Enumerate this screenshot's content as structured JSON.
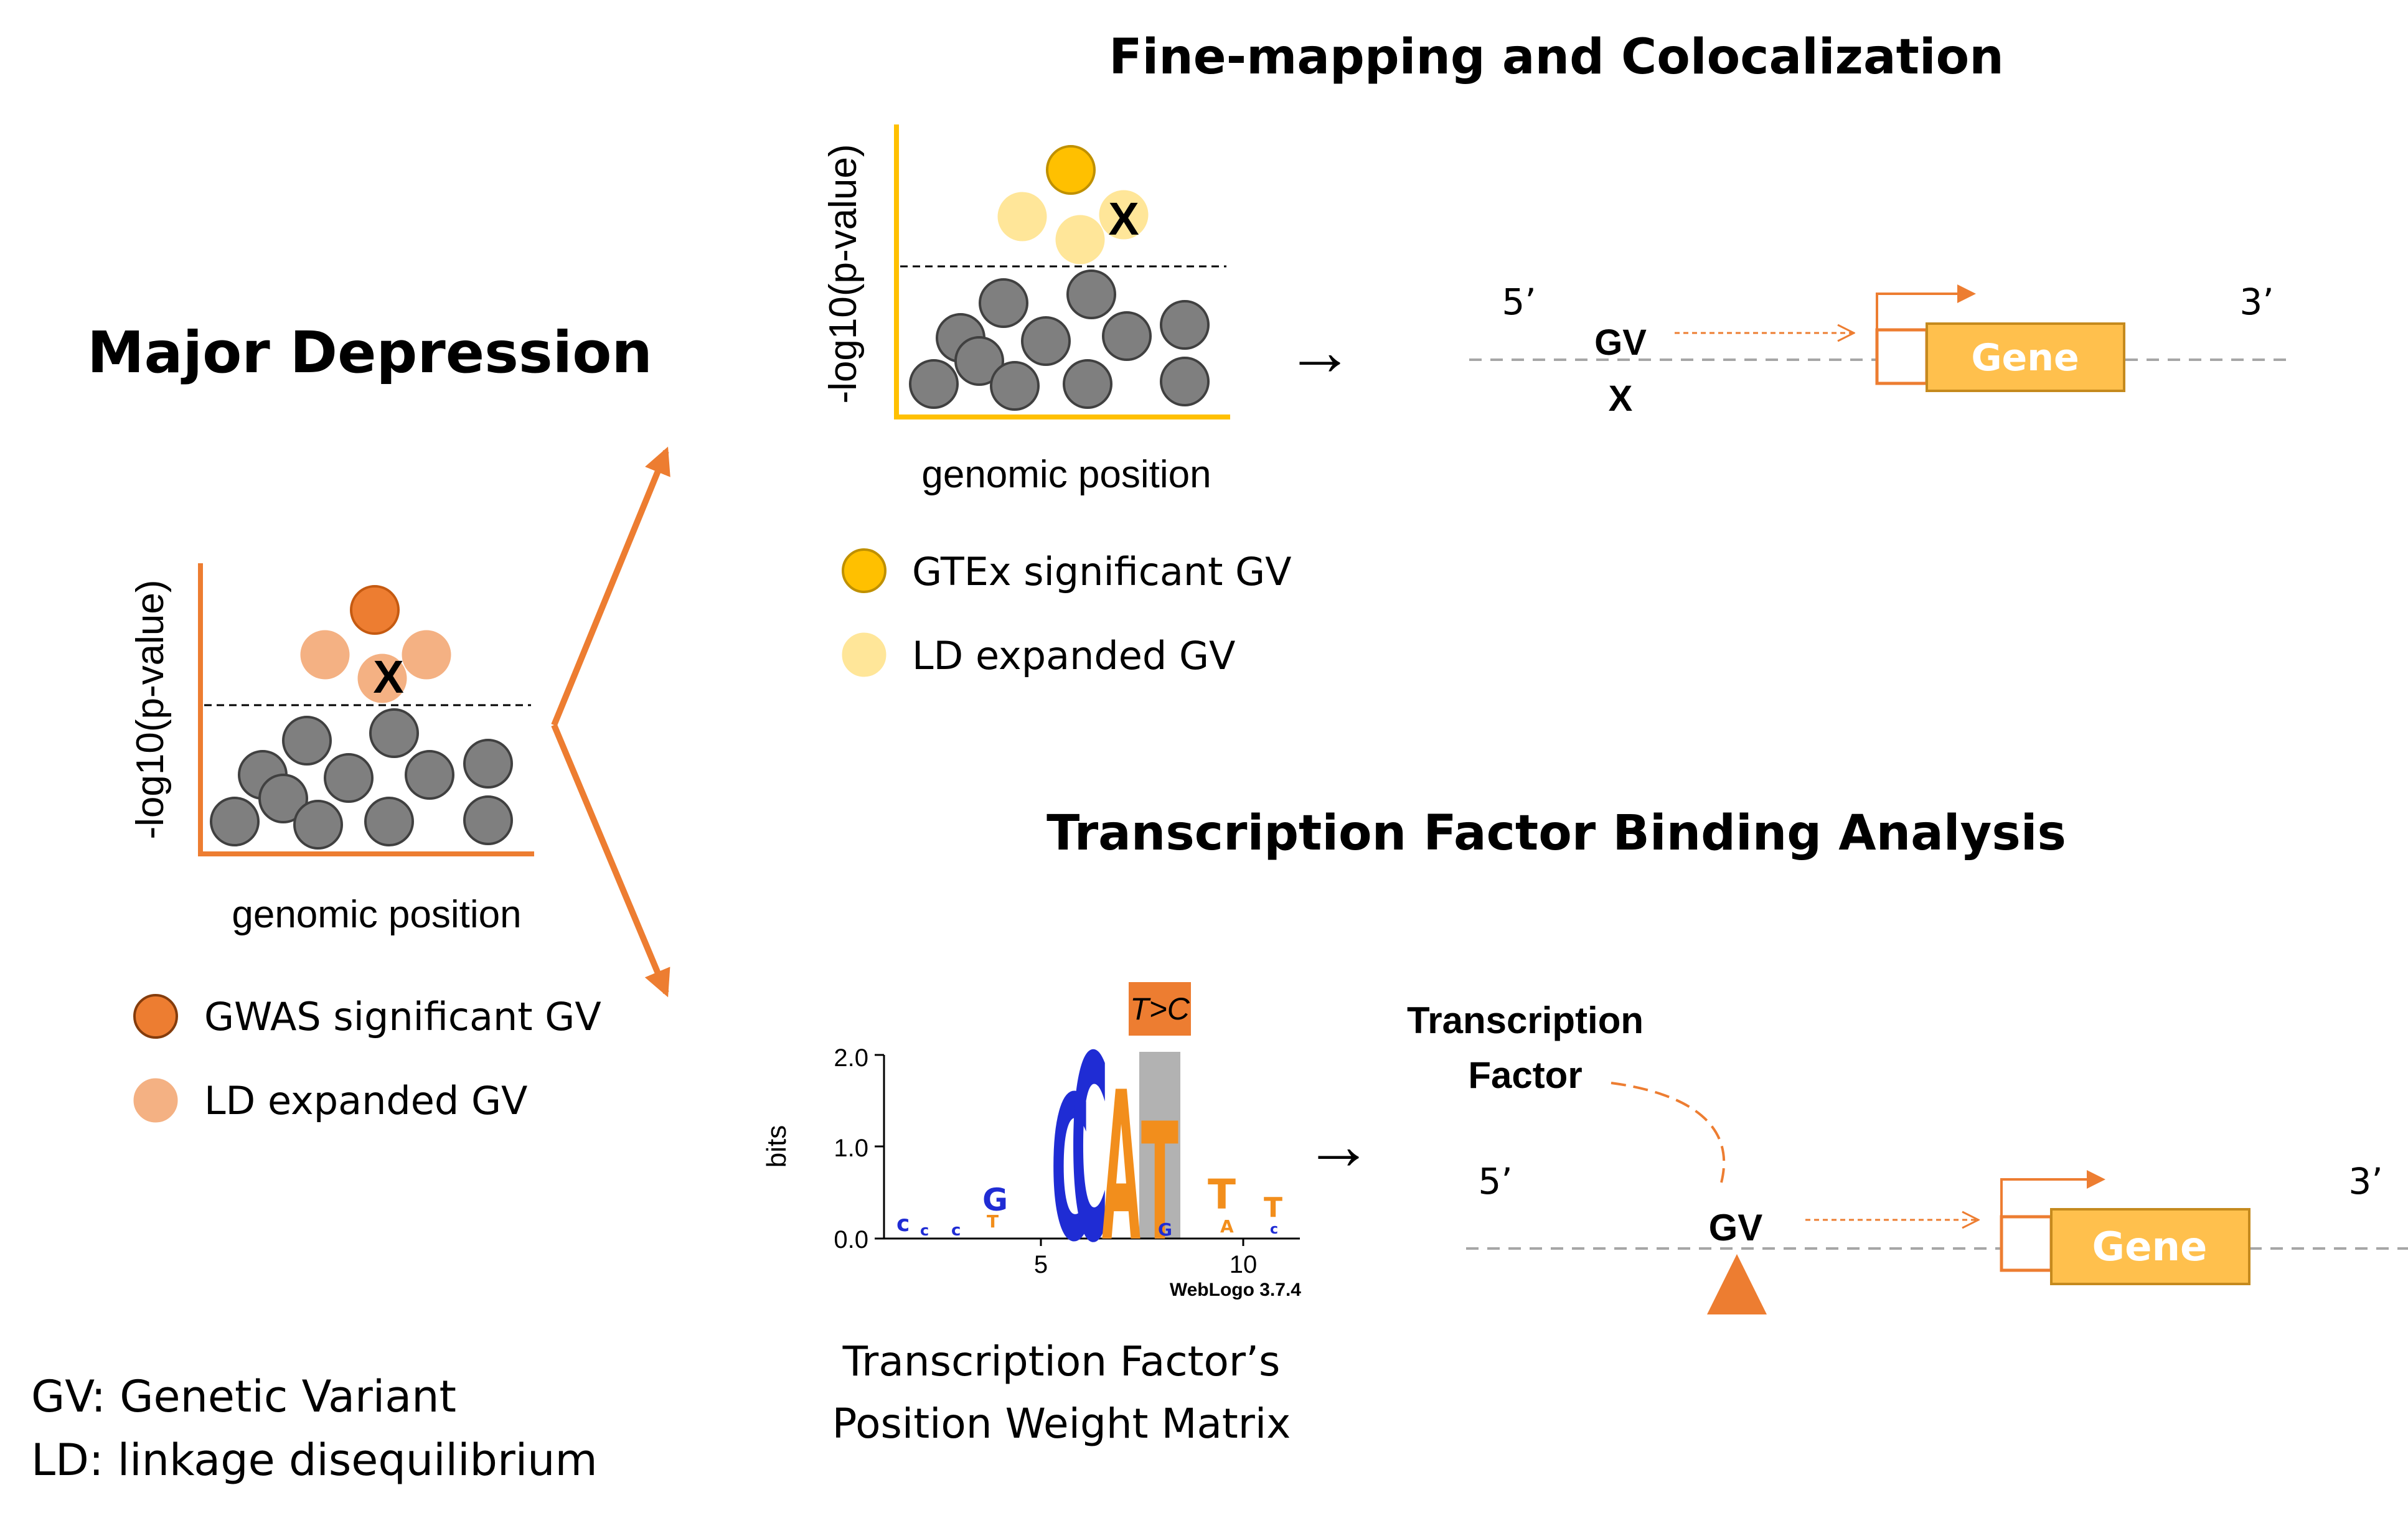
{
  "main_title": "Major Depression",
  "section_top_title": "Fine-mapping and Colocalization",
  "section_bottom_title": "Transcription Factor Binding Analysis",
  "axis_labels": {
    "y": "-log10(p-value)",
    "x": "genomic position"
  },
  "variant_marker": "X",
  "left_legend": {
    "significant": "GWAS significant GV",
    "expanded": "LD expanded GV"
  },
  "top_legend": {
    "significant": "GTEx significant GV",
    "expanded": "LD expanded GV"
  },
  "gene_diagram_top": {
    "five_prime": "5’",
    "three_prime": "3’",
    "gv_label": "GV",
    "gv_marker": "X",
    "gene_label": "Gene"
  },
  "gene_diagram_bottom": {
    "five_prime": "5’",
    "three_prime": "3’",
    "gv_label": "GV",
    "gene_label": "Gene",
    "tf_label_line1": "Transcription",
    "tf_label_line2": "Factor"
  },
  "weblogo": {
    "mutation": "T>C",
    "y_axis_label": "bits",
    "y_ticks": [
      "2.0",
      "1.0",
      "0.0"
    ],
    "x_ticks": [
      "5",
      "10"
    ],
    "credit": "WebLogo 3.7.4",
    "caption_line1": "Transcription Factor’s",
    "caption_line2": "Position Weight Matrix",
    "tall_letters": [
      "C",
      "C",
      "A",
      "T"
    ]
  },
  "abbreviations": {
    "gv": "GV: Genetic Variant",
    "ld": "LD: linkage disequilibrium"
  },
  "arrow_symbol": "→",
  "colors": {
    "orange": "#ED7D31",
    "salmon": "#F4B183",
    "gold": "#FFC000",
    "light_gold": "#FFE699",
    "gene_fill": "#FFC04D",
    "grey_dot": "#7F7F7F",
    "dash_grey": "#A6A6A6"
  }
}
